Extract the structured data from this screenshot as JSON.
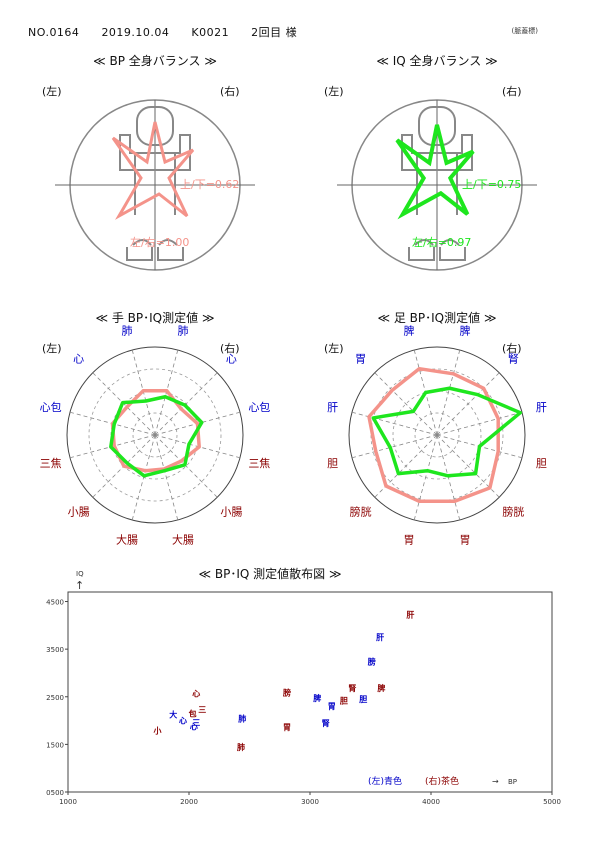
{
  "header": {
    "no": "NO.0164",
    "date": "2019.10.04",
    "code": "K0021",
    "name": "2回目 様",
    "corner": "(脈蓋標)"
  },
  "colors": {
    "pink": "#f4938a",
    "green": "#1ee61e",
    "blue": "#0000c8",
    "brown": "#8b0000",
    "circle": "#888888"
  },
  "bodies": [
    {
      "title": "≪ BP 全身バランス ≫",
      "left": "(左)",
      "right": "(右)",
      "ud": "上/下=0.62",
      "lr": "左/右=1.00",
      "color": "#f4938a"
    },
    {
      "title": "≪ IQ 全身バランス ≫",
      "left": "(左)",
      "right": "(右)",
      "ud": "上/下=0.75",
      "lr": "左/右=0.97",
      "color": "#1ee61e"
    }
  ],
  "radars": [
    {
      "title": "≪ 手 BP･IQ測定値 ≫",
      "left": "(左)",
      "right": "(右)",
      "labels": [
        "肺",
        "心",
        "心包",
        "三焦",
        "小腸",
        "大腸",
        "大腸",
        "小腸",
        "三焦",
        "心包",
        "心",
        "肺"
      ],
      "label_colors": [
        "blue",
        "blue",
        "blue",
        "brown",
        "brown",
        "brown",
        "brown",
        "brown",
        "brown",
        "blue",
        "blue",
        "blue"
      ],
      "bp": [
        0.52,
        0.45,
        0.5,
        0.48,
        0.5,
        0.42,
        0.4,
        0.42,
        0.52,
        0.5,
        0.42,
        0.52
      ],
      "iq": [
        0.4,
        0.52,
        0.48,
        0.52,
        0.45,
        0.48,
        0.42,
        0.48,
        0.4,
        0.55,
        0.48,
        0.45
      ]
    },
    {
      "title": "≪ 足 BP･IQ測定値 ≫",
      "left": "(左)",
      "right": "(右)",
      "labels": [
        "脾",
        "胃",
        "肝",
        "胆",
        "膀胱",
        "胃",
        "胃",
        "膀胱",
        "胆",
        "肝",
        "腎",
        "脾"
      ],
      "label_colors": [
        "blue",
        "blue",
        "blue",
        "brown",
        "brown",
        "brown",
        "brown",
        "brown",
        "brown",
        "blue",
        "blue",
        "blue"
      ],
      "bp": [
        0.78,
        0.72,
        0.8,
        0.72,
        0.82,
        0.78,
        0.78,
        0.85,
        0.72,
        0.72,
        0.75,
        0.72
      ],
      "iq": [
        0.5,
        0.38,
        0.75,
        0.55,
        0.62,
        0.42,
        0.48,
        0.62,
        0.5,
        0.98,
        0.65,
        0.55
      ]
    }
  ],
  "chart_data": {
    "type": "scatter",
    "title": "≪ BP･IQ 測定値散布図 ≫",
    "ylabel": "IQ",
    "xlabel": "BP",
    "xlim": [
      1000,
      5000
    ],
    "ylim": [
      500,
      4700
    ],
    "xticks": [
      1000,
      2000,
      3000,
      4000,
      5000
    ],
    "yticks": [
      500,
      1500,
      2500,
      3500,
      4500
    ],
    "ytick_labels": [
      "0500",
      "1500",
      "2500",
      "3500",
      "4500"
    ],
    "legend": {
      "left": "(左)青色",
      "right": "(右)茶色"
    },
    "points": [
      {
        "label": "肝",
        "x": 3830,
        "y": 4230,
        "side": "right"
      },
      {
        "label": "肝",
        "x": 3580,
        "y": 3750,
        "side": "left"
      },
      {
        "label": "膀",
        "x": 3510,
        "y": 3240,
        "side": "left"
      },
      {
        "label": "腎",
        "x": 3350,
        "y": 2680,
        "side": "right"
      },
      {
        "label": "脾",
        "x": 3590,
        "y": 2680,
        "side": "right"
      },
      {
        "label": "胆",
        "x": 3280,
        "y": 2420,
        "side": "right"
      },
      {
        "label": "胆",
        "x": 3440,
        "y": 2450,
        "side": "left"
      },
      {
        "label": "脾",
        "x": 3060,
        "y": 2470,
        "side": "left"
      },
      {
        "label": "胃",
        "x": 3180,
        "y": 2310,
        "side": "left"
      },
      {
        "label": "膀",
        "x": 2810,
        "y": 2590,
        "side": "right"
      },
      {
        "label": "腎",
        "x": 3130,
        "y": 1950,
        "side": "left"
      },
      {
        "label": "胃",
        "x": 2810,
        "y": 1860,
        "side": "right"
      },
      {
        "label": "肺",
        "x": 2440,
        "y": 2040,
        "side": "left"
      },
      {
        "label": "肺",
        "x": 2430,
        "y": 1450,
        "side": "right"
      },
      {
        "label": "心",
        "x": 2060,
        "y": 2570,
        "side": "right"
      },
      {
        "label": "三",
        "x": 2110,
        "y": 2230,
        "side": "right"
      },
      {
        "label": "大",
        "x": 1870,
        "y": 2130,
        "side": "left"
      },
      {
        "label": "心",
        "x": 1950,
        "y": 2000,
        "side": "left"
      },
      {
        "label": "包",
        "x": 2030,
        "y": 2150,
        "side": "right"
      },
      {
        "label": "三",
        "x": 2060,
        "y": 1960,
        "side": "left"
      },
      {
        "label": "心",
        "x": 2040,
        "y": 1880,
        "side": "left"
      },
      {
        "label": "小",
        "x": 1740,
        "y": 1790,
        "side": "right"
      }
    ]
  }
}
